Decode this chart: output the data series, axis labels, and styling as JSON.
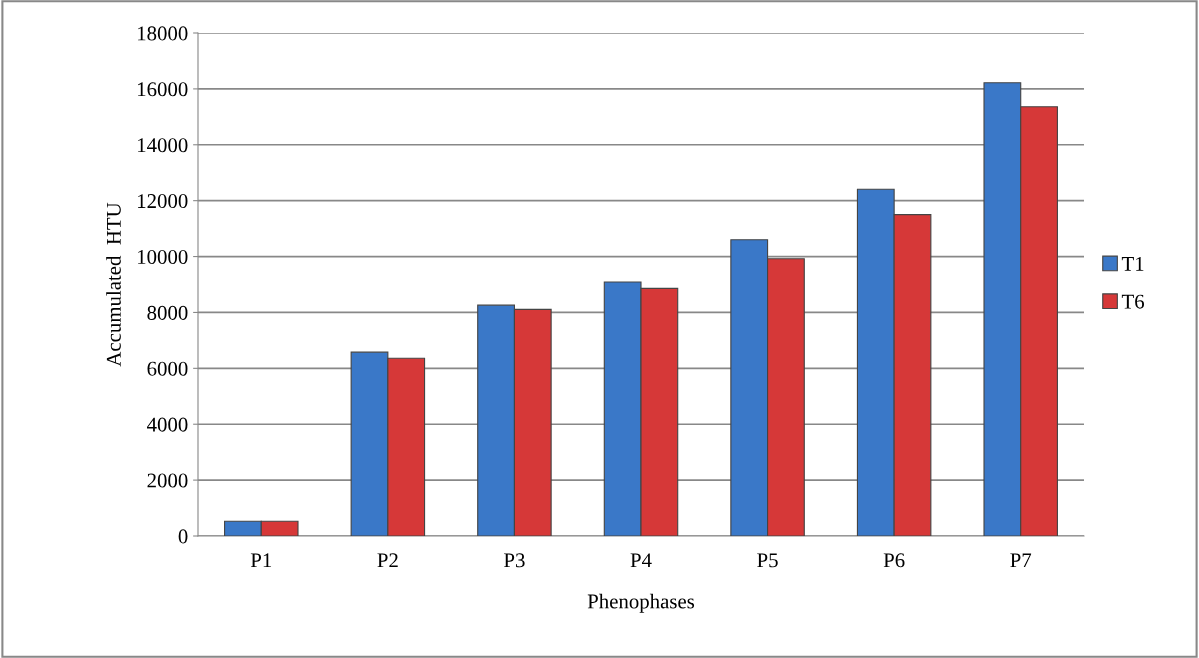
{
  "chart_data": {
    "type": "bar",
    "xlabel": "Phenophases",
    "ylabel": "Accumulated  HTU",
    "categories": [
      "P1",
      "P2",
      "P3",
      "P4",
      "P5",
      "P6",
      "P7"
    ],
    "series": [
      {
        "name": "T1",
        "color": "#3a78c8",
        "values": [
          530,
          6580,
          8260,
          9090,
          10600,
          12410,
          16220
        ]
      },
      {
        "name": "T6",
        "color": "#d63838",
        "values": [
          530,
          6360,
          8110,
          8860,
          9920,
          11500,
          15360
        ]
      }
    ],
    "ylim": [
      0,
      18000
    ],
    "yticks": [
      0,
      2000,
      4000,
      6000,
      8000,
      10000,
      12000,
      14000,
      16000,
      18000
    ],
    "grid": "y",
    "legend": "right"
  }
}
